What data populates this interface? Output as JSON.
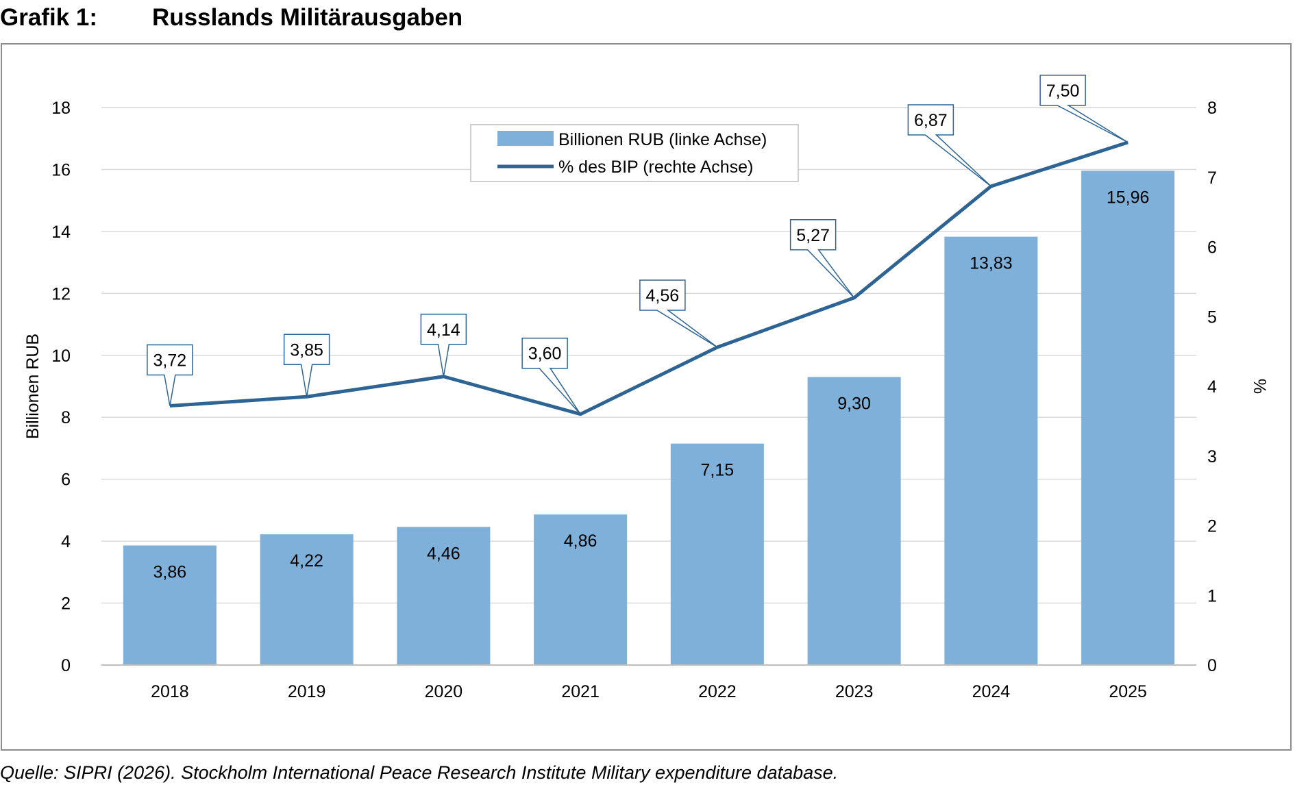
{
  "header": {
    "label": "Grafik 1:",
    "title": "Russlands Militärausgaben"
  },
  "source": "Quelle: SIPRI (2026). Stockholm International Peace Research Institute Military expenditure database.",
  "chart_data": {
    "type": "bar",
    "title": "Russlands Militärausgaben",
    "categories": [
      "2018",
      "2019",
      "2020",
      "2021",
      "2022",
      "2023",
      "2024",
      "2025"
    ],
    "ylabel": "Billionen RUB",
    "y2label": "%",
    "ylim": [
      0,
      18
    ],
    "y2lim": [
      0,
      8
    ],
    "yticks": [
      "0",
      "2",
      "4",
      "6",
      "8",
      "10",
      "12",
      "14",
      "16",
      "18"
    ],
    "y2ticks": [
      "0",
      "1",
      "2",
      "3",
      "4",
      "5",
      "6",
      "7",
      "8"
    ],
    "grid": true,
    "legend_position": "top-center",
    "series": [
      {
        "name": "Billionen RUB (linke Achse)",
        "type": "bar",
        "axis": "left",
        "color": "#7eb0d9",
        "values": [
          3.86,
          4.22,
          4.46,
          4.86,
          7.15,
          9.3,
          13.83,
          15.96
        ],
        "labels": [
          "3,86",
          "4,22",
          "4,46",
          "4,86",
          "7,15",
          "9,30",
          "13,83",
          "15,96"
        ]
      },
      {
        "name": "% des BIP (rechte Achse)",
        "type": "line",
        "axis": "right",
        "color": "#2e6494",
        "values": [
          3.72,
          3.85,
          4.14,
          3.6,
          4.56,
          5.27,
          6.87,
          7.5
        ],
        "labels": [
          "3,72",
          "3,85",
          "4,14",
          "3,60",
          "4,56",
          "5,27",
          "6,87",
          "7,50"
        ]
      }
    ]
  }
}
